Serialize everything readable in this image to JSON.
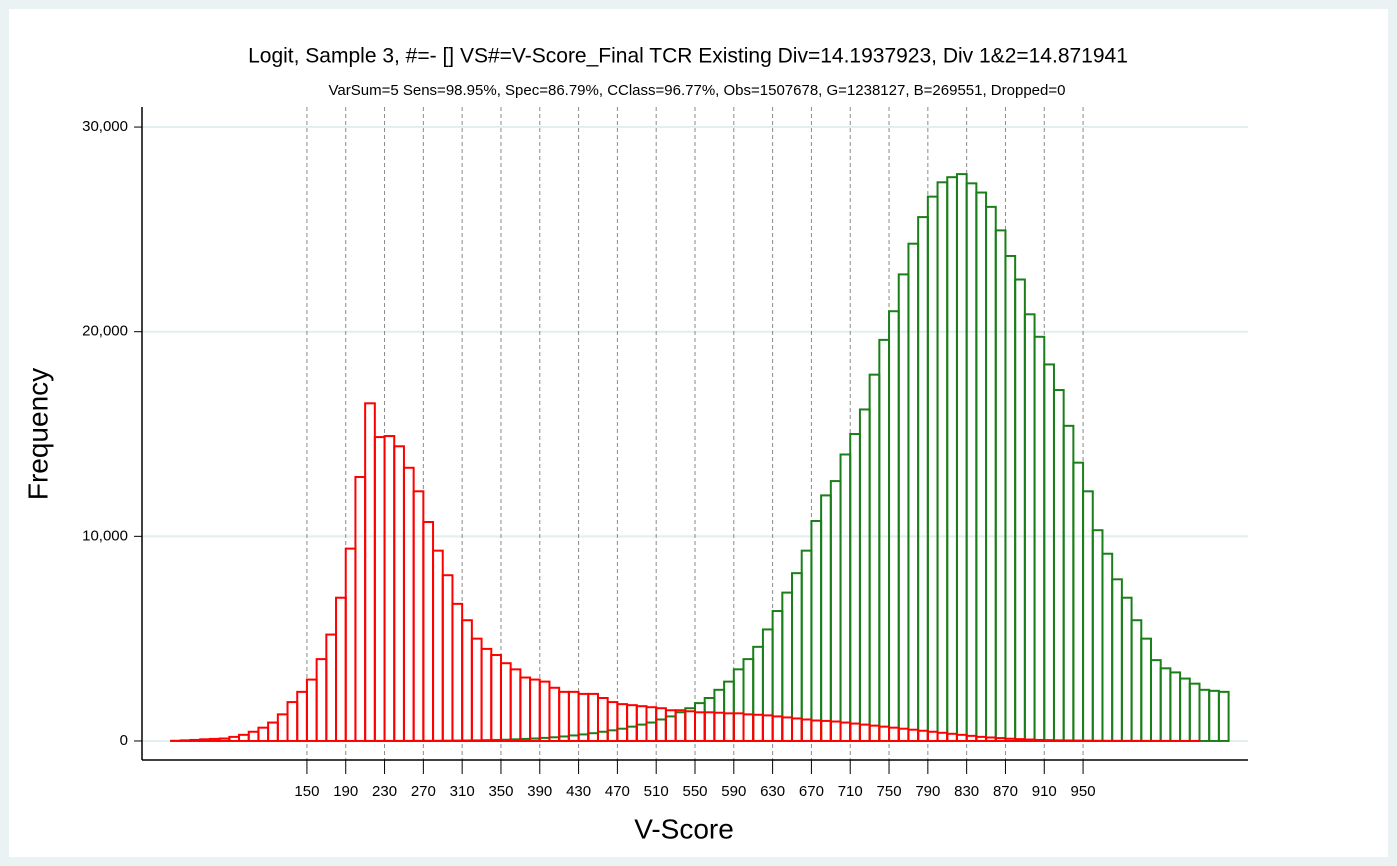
{
  "chart_data": {
    "type": "histogram",
    "title": "Logit, Sample 3, #=- [] VS#=V-Score_Final TCR Existing Div=14.1937923, Div 1&2=14.871941",
    "subtitle": "VarSum=5 Sens=98.95%, Spec=86.79%, CClass=96.77%, Obs=1507678, G=1238127, B=269551, Dropped=0",
    "x_label": "V-Score",
    "y_label": "Frequency",
    "bins": [
      0,
      10,
      20,
      30,
      40,
      50,
      60,
      70,
      80,
      90,
      100,
      110,
      120,
      130,
      140,
      150,
      160,
      170,
      180,
      190,
      200,
      210,
      220,
      230,
      240,
      250,
      260,
      270,
      280,
      290,
      300,
      310,
      320,
      330,
      340,
      350,
      360,
      370,
      380,
      390,
      400,
      410,
      420,
      430,
      440,
      450,
      460,
      470,
      480,
      490,
      500,
      510,
      520,
      530,
      540,
      550,
      560,
      570,
      580,
      590,
      600,
      610,
      620,
      630,
      640,
      650,
      660,
      670,
      680,
      690,
      700,
      710,
      720,
      730,
      740,
      750,
      760,
      770,
      780,
      790,
      800,
      810,
      820,
      830,
      840,
      850,
      860,
      870,
      880,
      890,
      900,
      910,
      920,
      930,
      940,
      950,
      960,
      970,
      980,
      990,
      1000,
      1010,
      1020,
      1030,
      1040,
      1050,
      1060,
      1070,
      1080,
      1090,
      1100
    ],
    "series": [
      {
        "color": "#1a7f1a",
        "values": [
          0,
          0,
          0,
          0,
          0,
          0,
          0,
          0,
          0,
          0,
          0,
          0,
          0,
          0,
          0,
          0,
          0,
          0,
          0,
          0,
          0,
          1,
          1,
          2,
          3,
          4,
          6,
          8,
          10,
          15,
          20,
          25,
          30,
          40,
          50,
          60,
          80,
          100,
          120,
          150,
          180,
          220,
          270,
          320,
          380,
          450,
          520,
          600,
          700,
          800,
          900,
          1050,
          1200,
          1400,
          1600,
          1850,
          2100,
          2500,
          2900,
          3500,
          4000,
          4600,
          5450,
          6350,
          7250,
          8200,
          9300,
          10750,
          12000,
          12700,
          14000,
          15000,
          16200,
          17900,
          19600,
          21000,
          22800,
          24300,
          25600,
          26600,
          27300,
          27550,
          27700,
          27250,
          26800,
          26100,
          24950,
          23700,
          22550,
          20850,
          19750,
          18400,
          17150,
          15400,
          13600,
          12200,
          10300,
          9150,
          7900,
          7000,
          5900,
          5000,
          3950,
          3550,
          3350,
          3050,
          2800,
          2500,
          2450,
          2400
        ]
      },
      {
        "color": "#ff0000",
        "values": [
          0,
          10,
          30,
          50,
          80,
          100,
          120,
          200,
          300,
          450,
          650,
          900,
          1300,
          1900,
          2400,
          3000,
          4000,
          5200,
          7000,
          9400,
          12900,
          16500,
          14850,
          14900,
          14400,
          13350,
          12200,
          10700,
          9300,
          8100,
          6700,
          5900,
          5000,
          4500,
          4200,
          3800,
          3500,
          3100,
          3000,
          2900,
          2600,
          2400,
          2400,
          2300,
          2300,
          2100,
          1900,
          1800,
          1750,
          1700,
          1650,
          1600,
          1500,
          1500,
          1450,
          1400,
          1400,
          1380,
          1350,
          1350,
          1300,
          1280,
          1250,
          1200,
          1150,
          1100,
          1050,
          1000,
          980,
          950,
          900,
          850,
          800,
          750,
          700,
          650,
          600,
          550,
          500,
          450,
          400,
          350,
          300,
          250,
          200,
          170,
          140,
          110,
          90,
          70,
          50,
          40,
          30,
          25,
          20,
          15,
          10,
          8,
          6,
          5,
          4,
          3,
          2,
          2,
          1,
          1,
          1,
          0,
          0,
          0
        ]
      }
    ],
    "xlim": [
      -20,
      1120
    ],
    "xticks": [
      150,
      190,
      230,
      270,
      310,
      350,
      390,
      430,
      470,
      510,
      550,
      590,
      630,
      670,
      710,
      750,
      790,
      830,
      870,
      910,
      950
    ],
    "ylim": [
      -930,
      30980
    ],
    "yticks": [
      0,
      {
        "value": 10000,
        "label": "10,000"
      },
      {
        "value": 20000,
        "label": "20,000"
      },
      {
        "value": 30000,
        "label": "30,000"
      }
    ],
    "grid": true
  }
}
